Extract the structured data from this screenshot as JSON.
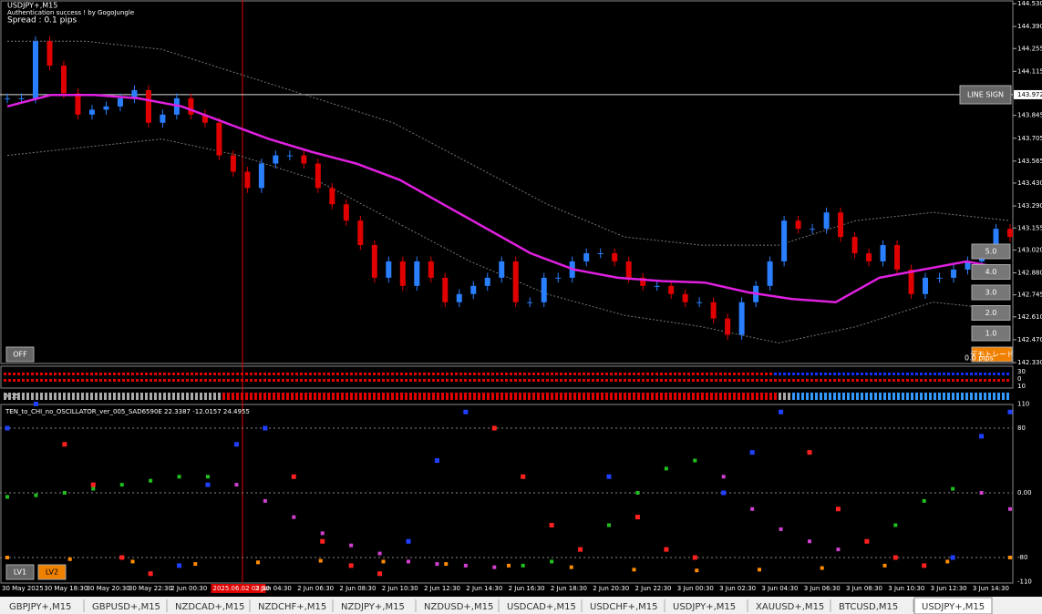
{
  "header": {
    "symbol": "USDJPY+,M15",
    "auth": "Authentication success ! by GogoJungle",
    "spread": "Spread : 0.1 pips"
  },
  "price_axis": {
    "range": [
      142.33,
      144.53
    ],
    "ticks": [
      {
        "value": 144.53,
        "label": "144.530"
      },
      {
        "value": 144.39,
        "label": "144.390"
      },
      {
        "value": 144.255,
        "label": "144.255"
      },
      {
        "value": 144.115,
        "label": "144.115"
      },
      {
        "value": 143.845,
        "label": "143.845"
      },
      {
        "value": 143.705,
        "label": "143.705"
      },
      {
        "value": 143.565,
        "label": "143.565"
      },
      {
        "value": 143.43,
        "label": "143.430"
      },
      {
        "value": 143.29,
        "label": "143.290"
      },
      {
        "value": 143.155,
        "label": "143.155"
      },
      {
        "value": 143.02,
        "label": "143.020"
      },
      {
        "value": 142.88,
        "label": "142.880"
      },
      {
        "value": 142.745,
        "label": "142.745"
      },
      {
        "value": 142.61,
        "label": "142.610"
      },
      {
        "value": 142.47,
        "label": "142.470"
      },
      {
        "value": 142.33,
        "label": "142.330"
      }
    ],
    "current": {
      "value": 143.972,
      "label": "143.972"
    }
  },
  "closes": [
    143.95,
    143.95,
    144.3,
    144.15,
    143.98,
    143.85,
    143.88,
    143.9,
    143.95,
    144.0,
    143.8,
    143.85,
    143.95,
    143.85,
    143.8,
    143.6,
    143.5,
    143.4,
    143.55,
    143.6,
    143.6,
    143.55,
    143.4,
    143.3,
    143.2,
    143.05,
    142.85,
    142.95,
    142.8,
    142.95,
    142.85,
    142.7,
    142.75,
    142.8,
    142.85,
    142.95,
    142.7,
    142.7,
    142.85,
    142.85,
    142.95,
    143.0,
    143.0,
    142.95,
    142.85,
    142.8,
    142.8,
    142.75,
    142.7,
    142.7,
    142.6,
    142.5,
    142.7,
    142.8,
    142.95,
    143.2,
    143.15,
    143.15,
    143.25,
    143.1,
    143.0,
    142.95,
    143.05,
    142.9,
    142.75,
    142.85,
    142.85,
    142.9,
    142.95,
    143.0,
    143.15,
    143.1
  ],
  "ma": [
    143.9,
    143.97,
    143.97,
    143.95,
    143.9,
    143.8,
    143.7,
    143.62,
    143.55,
    143.45,
    143.3,
    143.15,
    143.0,
    142.9,
    142.85,
    142.83,
    142.82,
    142.76,
    142.72,
    142.7,
    142.85,
    142.9,
    142.95,
    142.9
  ],
  "band_upper": [
    144.3,
    144.3,
    144.25,
    144.1,
    143.95,
    143.8,
    143.55,
    143.3,
    143.1,
    143.05,
    143.05,
    143.2,
    143.25,
    143.2
  ],
  "band_lower": [
    143.6,
    143.65,
    143.7,
    143.6,
    143.45,
    143.2,
    142.95,
    142.75,
    142.62,
    142.55,
    142.45,
    142.55,
    142.7,
    142.65
  ],
  "buttons": {
    "line_sign": "LINE SIGN",
    "levels": [
      "5.0",
      "4.0",
      "3.0",
      "2.0",
      "1.0"
    ],
    "demo": "デモトレード",
    "pips": "0.0 pips",
    "off": "OFF",
    "lv1": "LV1",
    "lv2": "LV2"
  },
  "strip": {
    "labels": [
      "30",
      "0",
      "10"
    ],
    "tf": "M15"
  },
  "oscillator": {
    "title": "TEN_to_CHI_no_OSCILLATOR_ver_005_SAD6590E 22.3387 -12.0157 24.4955",
    "ticks": [
      {
        "value": 110,
        "label": "110"
      },
      {
        "value": 80,
        "label": "80"
      },
      {
        "value": 0,
        "label": "0.00"
      },
      {
        "value": -80,
        "label": "-80"
      },
      {
        "value": -110,
        "label": "-110"
      }
    ],
    "fast": [
      80,
      110,
      60,
      10,
      -80,
      -100,
      -90,
      10,
      60,
      80,
      20,
      -60,
      -90,
      -100,
      -60,
      40,
      100,
      80,
      20,
      -40,
      -70,
      20,
      -30,
      -70,
      -80,
      0,
      50,
      100,
      50,
      -20,
      -60,
      -80,
      -90,
      -80,
      70,
      100
    ],
    "slow": [
      -5,
      -3,
      0,
      5,
      10,
      15,
      20,
      20,
      10,
      -10,
      -30,
      -50,
      -65,
      -75,
      -85,
      -88,
      -90,
      -92,
      -90,
      -85,
      -70,
      -40,
      0,
      30,
      40,
      20,
      -20,
      -45,
      -60,
      -70,
      -60,
      -40,
      -10,
      5,
      0,
      -20
    ],
    "signal": [
      -80,
      -82,
      -85,
      -88,
      -86,
      -84,
      -85,
      -88,
      -90,
      -92,
      -95,
      -96,
      -95,
      -93,
      -90,
      -85,
      -80
    ]
  },
  "time_axis": [
    "30 May 2025",
    "30 May 18:30",
    "30 May 20:30",
    "30 May 22:30",
    "2 Jun 00:30",
    "2025.06.02 03:30",
    "2 Jun 04:30",
    "2 Jun 06:30",
    "2 Jun 08:30",
    "2 Jun 10:30",
    "2 Jun 12:30",
    "2 Jun 14:30",
    "2 Jun 16:30",
    "2 Jun 18:30",
    "2 Jun 20:30",
    "2 Jun 22:30",
    "3 Jun 00:30",
    "3 Jun 02:30",
    "3 Jun 04:30",
    "3 Jun 06:30",
    "3 Jun 08:30",
    "3 Jun 10:30",
    "3 Jun 12:30",
    "3 Jun 14:30"
  ],
  "tabs": [
    "GBPJPY+,M15",
    "GBPUSD+,M15",
    "NZDCAD+,M15",
    "NZDCHF+,M15",
    "NZDJPY+,M15",
    "NZDUSD+,M15",
    "USDCAD+,M15",
    "USDCHF+,M15",
    "USDJPY+,M15",
    "XAUUSD+,M15",
    "BTCUSD,M15",
    "USDJPY+,M15"
  ]
}
